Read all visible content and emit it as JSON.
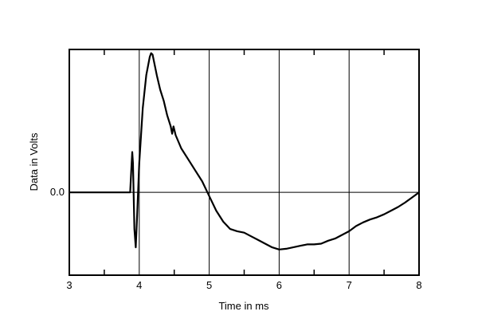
{
  "chart_data": {
    "type": "line",
    "title": "",
    "xlabel": "Time in ms",
    "ylabel": "Data in Volts",
    "xlim": [
      3,
      8
    ],
    "ylim": [
      -1.13,
      1.95
    ],
    "x_ticks": [
      3,
      4,
      5,
      6,
      7,
      8
    ],
    "x_tick_labels": [
      "3",
      "4",
      "5",
      "6",
      "7",
      "8"
    ],
    "y_ticks": [
      0
    ],
    "y_tick_labels": [
      "0.0"
    ],
    "grid": true,
    "legend": "none",
    "series": [
      {
        "values": [
          [
            3.0,
            0.0
          ],
          [
            3.87,
            0.0
          ],
          [
            3.88,
            0.2
          ],
          [
            3.9,
            0.55
          ],
          [
            3.91,
            0.4
          ],
          [
            3.93,
            -0.5
          ],
          [
            3.95,
            -0.75
          ],
          [
            3.97,
            -0.3
          ],
          [
            4.0,
            0.4
          ],
          [
            4.05,
            1.15
          ],
          [
            4.1,
            1.6
          ],
          [
            4.15,
            1.85
          ],
          [
            4.17,
            1.9
          ],
          [
            4.19,
            1.88
          ],
          [
            4.25,
            1.6
          ],
          [
            4.3,
            1.4
          ],
          [
            4.35,
            1.25
          ],
          [
            4.4,
            1.05
          ],
          [
            4.45,
            0.9
          ],
          [
            4.47,
            0.8
          ],
          [
            4.49,
            0.9
          ],
          [
            4.52,
            0.78
          ],
          [
            4.6,
            0.6
          ],
          [
            4.7,
            0.45
          ],
          [
            4.8,
            0.3
          ],
          [
            4.9,
            0.15
          ],
          [
            5.0,
            -0.05
          ],
          [
            5.1,
            -0.25
          ],
          [
            5.2,
            -0.4
          ],
          [
            5.3,
            -0.5
          ],
          [
            5.4,
            -0.53
          ],
          [
            5.5,
            -0.55
          ],
          [
            5.6,
            -0.6
          ],
          [
            5.7,
            -0.65
          ],
          [
            5.8,
            -0.7
          ],
          [
            5.9,
            -0.75
          ],
          [
            6.0,
            -0.78
          ],
          [
            6.1,
            -0.77
          ],
          [
            6.2,
            -0.75
          ],
          [
            6.3,
            -0.73
          ],
          [
            6.4,
            -0.71
          ],
          [
            6.5,
            -0.71
          ],
          [
            6.6,
            -0.7
          ],
          [
            6.7,
            -0.66
          ],
          [
            6.8,
            -0.63
          ],
          [
            6.9,
            -0.58
          ],
          [
            7.0,
            -0.53
          ],
          [
            7.1,
            -0.46
          ],
          [
            7.2,
            -0.41
          ],
          [
            7.3,
            -0.37
          ],
          [
            7.4,
            -0.34
          ],
          [
            7.5,
            -0.3
          ],
          [
            7.6,
            -0.25
          ],
          [
            7.7,
            -0.2
          ],
          [
            7.8,
            -0.14
          ],
          [
            7.9,
            -0.07
          ],
          [
            8.0,
            0.0
          ]
        ]
      }
    ]
  }
}
